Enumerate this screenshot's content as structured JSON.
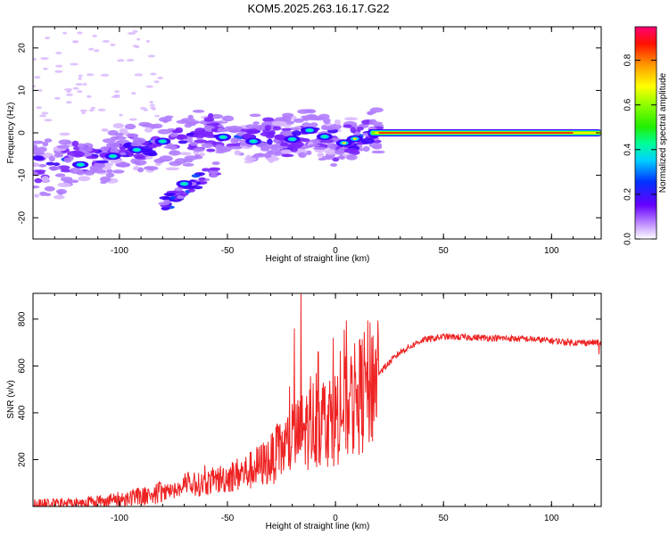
{
  "title": "KOM5.2025.263.16.17.G22",
  "chart_data": [
    {
      "type": "heatmap",
      "xlabel": "Height of straight line (km)",
      "ylabel": "Frequency (Hz)",
      "xlim": [
        -140,
        123
      ],
      "ylim": [
        -25,
        25
      ],
      "xticks": [
        -100,
        -50,
        0,
        50,
        100
      ],
      "yticks": [
        -20,
        -10,
        0,
        10,
        20
      ],
      "colorbar": {
        "label": "Normalized spectral amplitude",
        "range": [
          0.0,
          0.95
        ],
        "ticks": [
          0.0,
          0.2,
          0.4,
          0.6,
          0.8
        ]
      },
      "trace": {
        "x": [
          -128,
          -120,
          -110,
          -100,
          -90,
          -80,
          -70,
          -60,
          -50,
          -40,
          -30,
          -20,
          -12,
          -5,
          2,
          8,
          15,
          30,
          50,
          70,
          90,
          110,
          123
        ],
        "y": [
          -8,
          -6.5,
          -5.5,
          -4.5,
          -3.5,
          -2,
          -1,
          0,
          -1,
          -1.5,
          -1,
          -1.5,
          0.5,
          -1,
          -2.5,
          -1.5,
          0,
          0,
          0,
          0,
          0,
          0,
          0
        ]
      }
    },
    {
      "type": "line",
      "xlabel": "Height of straight line (km)",
      "ylabel": "SNR (v/v)",
      "xlim": [
        -140,
        123
      ],
      "ylim": [
        0,
        910
      ],
      "xticks": [
        -100,
        -50,
        0,
        50,
        100
      ],
      "yticks": [
        200,
        400,
        600,
        800
      ],
      "color": "#ee2222",
      "envelope": {
        "x": [
          -140,
          -120,
          -100,
          -80,
          -60,
          -40,
          -30,
          -20,
          -10,
          0,
          10,
          20,
          30,
          40,
          50,
          70,
          90,
          110,
          123
        ],
        "y": [
          10,
          15,
          30,
          60,
          100,
          150,
          200,
          280,
          360,
          380,
          460,
          570,
          660,
          710,
          725,
          720,
          715,
          700,
          700
        ]
      },
      "spikes": [
        {
          "x": -16,
          "y": 910
        },
        {
          "x": -19,
          "y": 760
        },
        {
          "x": 4,
          "y": 755
        },
        {
          "x": -1,
          "y": 720
        },
        {
          "x": -8,
          "y": 660
        },
        {
          "x": 122,
          "y": 650
        }
      ]
    }
  ]
}
